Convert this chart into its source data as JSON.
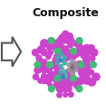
{
  "title": "Composite",
  "title_fontsize": 9,
  "title_fontweight": "bold",
  "title_color": "#111111",
  "bg_color": "#ffffff",
  "purple": "#cc44cc",
  "green": "#44bb77",
  "teal": "#44aaaa",
  "gray": "#999999",
  "bond_color": "#888888",
  "arrow_face": "#ffffff",
  "arrow_edge": "#555555"
}
